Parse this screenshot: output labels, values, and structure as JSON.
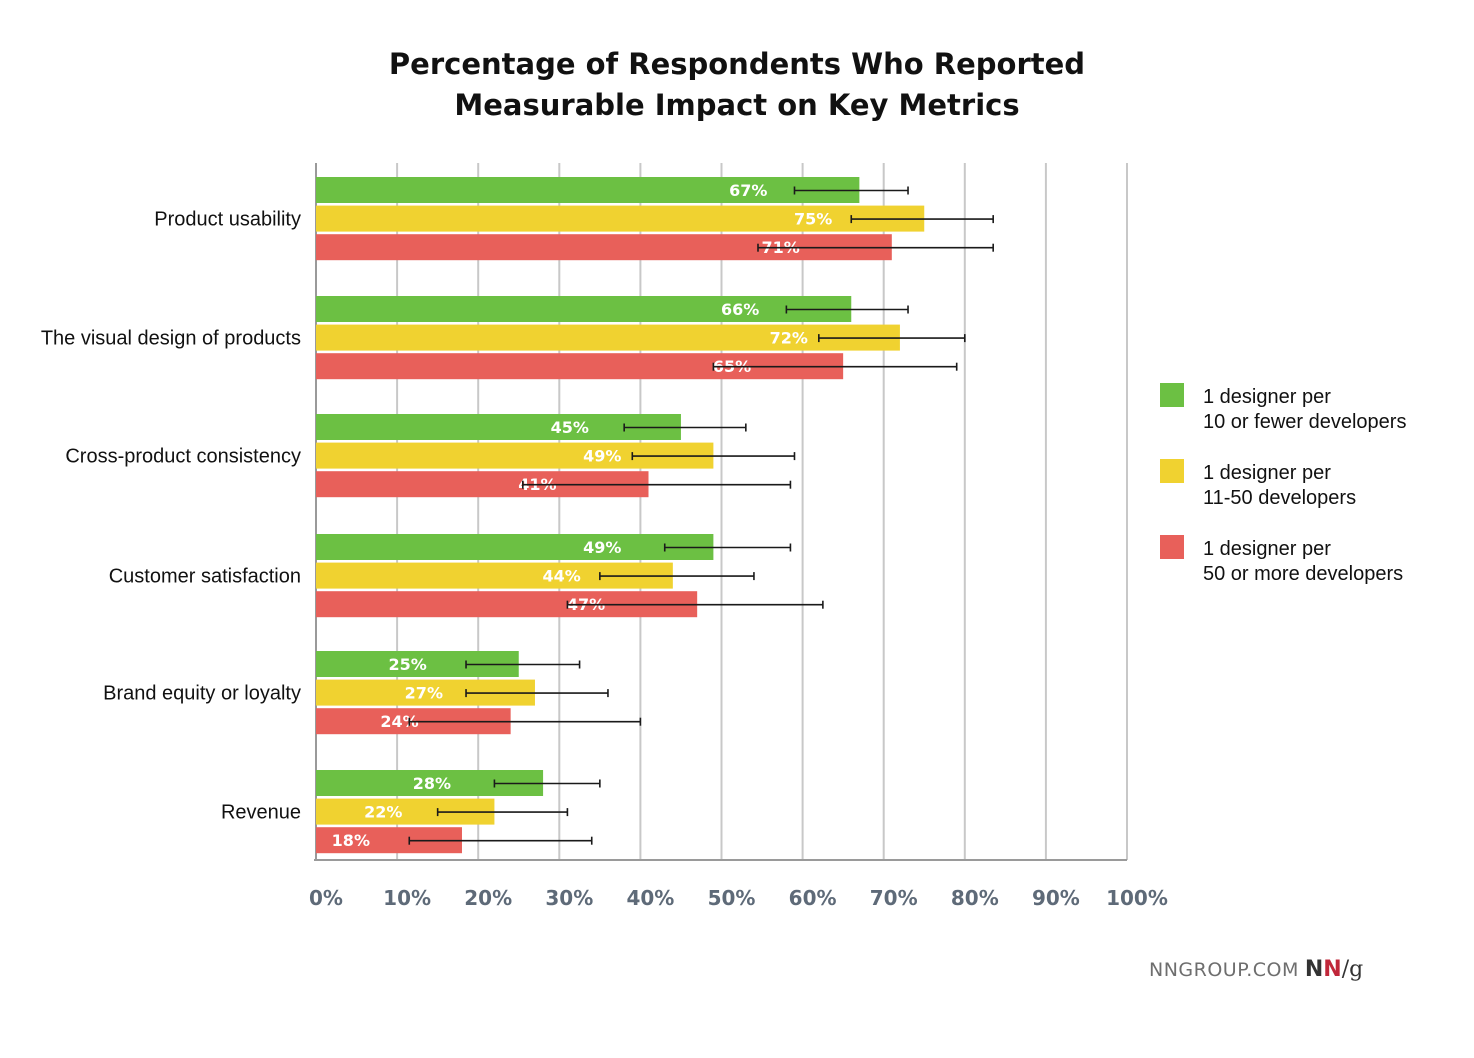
{
  "chart_data": {
    "type": "bar",
    "orientation": "horizontal",
    "title_lines": [
      "Percentage of Respondents Who Reported",
      "Measurable Impact on Key Metrics"
    ],
    "categories": [
      "Product usability",
      "The visual design of products",
      "Cross-product consistency",
      "Customer satisfaction",
      "Brand equity or loyalty",
      "Revenue"
    ],
    "series": [
      {
        "name": "1 designer per 10 or fewer developers",
        "legend_lines": [
          "1 designer per",
          "10 or fewer developers"
        ],
        "color": "#6cc043",
        "values": [
          67,
          66,
          45,
          49,
          25,
          28
        ],
        "labels": [
          "67%",
          "66%",
          "45%",
          "49%",
          "25%",
          "28%"
        ],
        "ci": [
          [
            59,
            73
          ],
          [
            58,
            73
          ],
          [
            38,
            53
          ],
          [
            43,
            58.5
          ],
          [
            18.5,
            32.5
          ],
          [
            22,
            35
          ]
        ]
      },
      {
        "name": "1 designer per 11-50 developers",
        "legend_lines": [
          "1 designer per",
          "11-50 developers"
        ],
        "color": "#f0d230",
        "values": [
          75,
          72,
          49,
          44,
          27,
          22
        ],
        "labels": [
          "75%",
          "72%",
          "49%",
          "44%",
          "27%",
          "22%"
        ],
        "ci": [
          [
            66,
            83.5
          ],
          [
            62,
            80
          ],
          [
            39,
            59
          ],
          [
            35,
            54
          ],
          [
            18.5,
            36
          ],
          [
            15,
            31
          ]
        ]
      },
      {
        "name": "1 designer per 50 or more developers",
        "legend_lines": [
          "1 designer per",
          "50 or more developers"
        ],
        "color": "#e8605a",
        "values": [
          71,
          65,
          41,
          47,
          24,
          18
        ],
        "labels": [
          "71%",
          "65%",
          "41%",
          "47%",
          "24%",
          "18%"
        ],
        "ci": [
          [
            54.5,
            83.5
          ],
          [
            49,
            79
          ],
          [
            25.5,
            58.5
          ],
          [
            31,
            62.5
          ],
          [
            11.5,
            40
          ],
          [
            11.5,
            34
          ]
        ]
      }
    ],
    "xlim": [
      0,
      100
    ],
    "x_ticks": [
      "0%",
      "10%",
      "20%",
      "30%",
      "40%",
      "50%",
      "60%",
      "70%",
      "80%",
      "90%",
      "100%"
    ],
    "error_bars": true,
    "grid": true,
    "legend_position": "right"
  },
  "brand": {
    "site": "NNGROUP.COM",
    "logo_n1": "N",
    "logo_n2": "N",
    "logo_g": "/g"
  }
}
